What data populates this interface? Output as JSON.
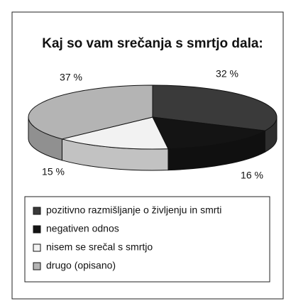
{
  "chart_data": {
    "type": "pie",
    "title": "Kaj so vam srečanja s smrtjo dala:",
    "categories": [
      "pozitivno razmišljanje o življenju in smrti",
      "negativen odnos",
      "nisem se srečal s smrtjo",
      "drugo (opisano)"
    ],
    "values": [
      32,
      16,
      15,
      37
    ],
    "value_labels": [
      "32 %",
      "16 %",
      "15 %",
      "37 %"
    ],
    "colors": [
      "#3a3a3a",
      "#141414",
      "#f2f2f2",
      "#b4b4b4"
    ],
    "legend": "bottom"
  }
}
